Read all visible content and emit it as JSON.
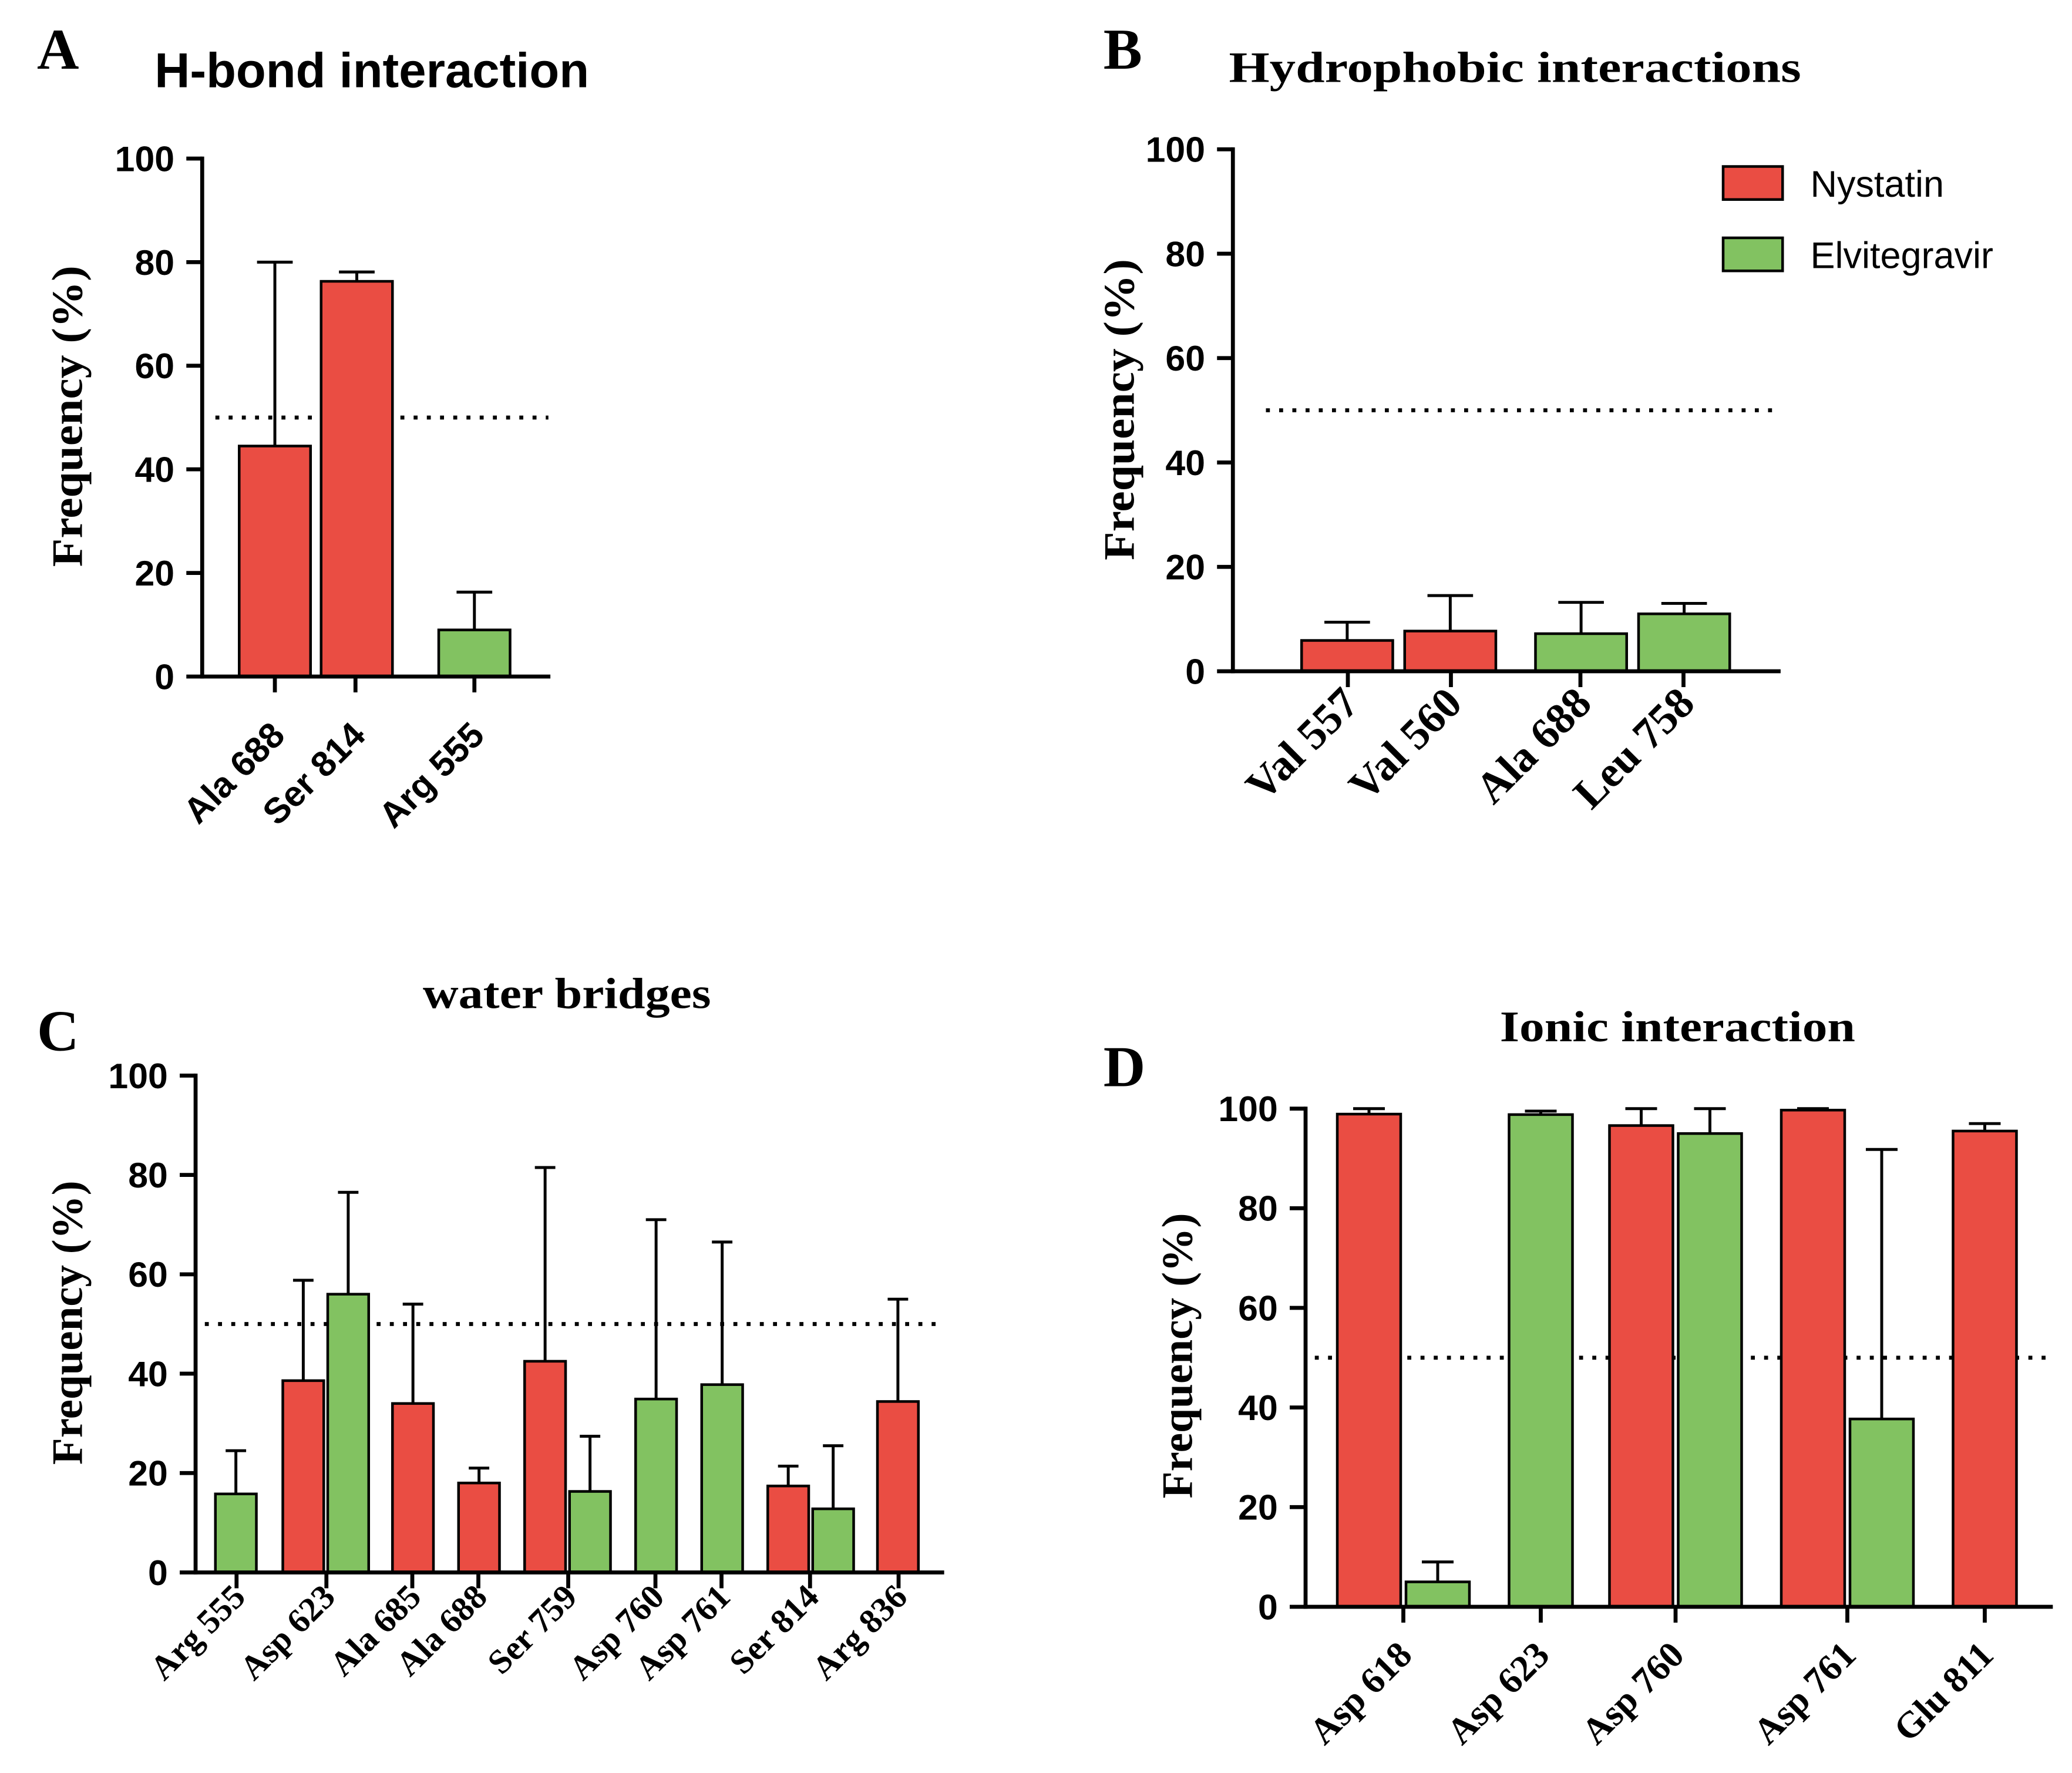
{
  "chart_data": [
    {
      "panel": "A",
      "type": "bar",
      "title": "H-bond interaction",
      "ylabel": "Frequency (%)",
      "ylim": [
        0,
        100
      ],
      "yticks": [
        0,
        20,
        40,
        60,
        80,
        100
      ],
      "reference_line": 50,
      "categories": [
        "Ala 688",
        "Ser 814",
        "Arg 555"
      ],
      "series": [
        {
          "name": "Nystatin",
          "color": "#EA4D43",
          "values": [
            44.5,
            76.3,
            null
          ],
          "errors": [
            35.5,
            1.8,
            null
          ]
        },
        {
          "name": "Elvitegravir",
          "color": "#82C261",
          "values": [
            null,
            null,
            9.0
          ],
          "errors": [
            null,
            null,
            7.3
          ]
        }
      ]
    },
    {
      "panel": "B",
      "type": "bar",
      "title": "Hydrophobic interactions",
      "ylabel": "Frequency (%)",
      "ylim": [
        0,
        100
      ],
      "yticks": [
        0,
        20,
        40,
        60,
        80,
        100
      ],
      "reference_line": 50,
      "categories": [
        "Val 557",
        "Val 560",
        "Ala 688",
        "Leu 758"
      ],
      "series": [
        {
          "name": "Nystatin",
          "color": "#EA4D43",
          "values": [
            5.9,
            7.7,
            null,
            null
          ],
          "errors": [
            3.5,
            6.8,
            null,
            null
          ]
        },
        {
          "name": "Elvitegravir",
          "color": "#82C261",
          "values": [
            null,
            null,
            7.2,
            11.0
          ],
          "errors": [
            null,
            null,
            6.0,
            2.0
          ]
        }
      ]
    },
    {
      "panel": "C",
      "type": "bar",
      "title": "water bridges",
      "ylabel": "Frequency (%)",
      "ylim": [
        0,
        100
      ],
      "yticks": [
        0,
        20,
        40,
        60,
        80,
        100
      ],
      "reference_line": 50,
      "categories": [
        "Arg 555",
        "Asp 623",
        "Ala 685",
        "Ala 688",
        "Ser 759",
        "Asp 760",
        "Asp 761",
        "Ser 814",
        "Arg 836"
      ],
      "series": [
        {
          "name": "Nystatin",
          "color": "#EA4D43",
          "values": [
            null,
            38.6,
            34.0,
            18.0,
            42.5,
            null,
            null,
            17.4,
            34.4
          ],
          "errors": [
            null,
            20.2,
            20.0,
            3.0,
            39.0,
            null,
            null,
            4.0,
            20.6
          ]
        },
        {
          "name": "Elvitegravir",
          "color": "#82C261",
          "values": [
            15.8,
            56.0,
            null,
            null,
            16.3,
            34.9,
            37.8,
            12.8,
            null
          ],
          "errors": [
            8.7,
            20.5,
            null,
            null,
            11.1,
            36.1,
            28.7,
            12.7,
            null
          ]
        }
      ]
    },
    {
      "panel": "D",
      "type": "bar",
      "title": "Ionic interaction",
      "ylabel": "Frequency (%)",
      "ylim": [
        0,
        100
      ],
      "yticks": [
        0,
        20,
        40,
        60,
        80,
        100
      ],
      "reference_line": 50,
      "categories": [
        "Asp 618",
        "Asp 623",
        "Asp 760",
        "Asp 761",
        "Glu 811"
      ],
      "series": [
        {
          "name": "Nystatin",
          "color": "#EA4D43",
          "values": [
            98.9,
            null,
            96.6,
            99.7,
            95.5
          ],
          "errors": [
            1.1,
            null,
            3.4,
            0.3,
            1.5
          ]
        },
        {
          "name": "Elvitegravir",
          "color": "#82C261",
          "values": [
            5.0,
            98.8,
            95.0,
            37.7,
            null
          ],
          "errors": [
            4.0,
            0.7,
            5.0,
            54.1,
            null
          ]
        }
      ]
    }
  ]
}
